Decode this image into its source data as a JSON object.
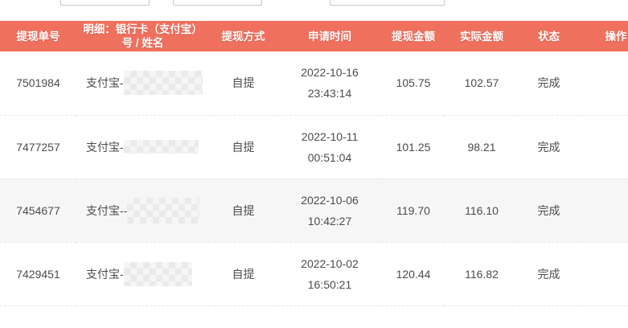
{
  "filter_bar": {
    "inputs": [
      {
        "value": "",
        "placeholder": ""
      },
      {
        "value": "",
        "placeholder": ""
      },
      {
        "value": "",
        "placeholder": ""
      }
    ]
  },
  "table": {
    "header_bg": "#f0705e",
    "columns": [
      "提现单号",
      "明细：银行卡（支付宝）号 / 姓名",
      "提现方式",
      "申请时间",
      "提现金额",
      "实际金额",
      "状态",
      "操作"
    ],
    "rows": [
      {
        "order_no": "7501984",
        "detail_prefix": "支付宝-",
        "redacted": "blurred",
        "method": "自提",
        "apply_date": "2022-10-16",
        "apply_time": "23:43:14",
        "amount": "105.75",
        "actual": "102.57",
        "status": "完成",
        "operation": ""
      },
      {
        "order_no": "7477257",
        "detail_prefix": "支付宝-",
        "redacted": "blurred",
        "method": "自提",
        "apply_date": "2022-10-11",
        "apply_time": "00:51:04",
        "amount": "101.25",
        "actual": "98.21",
        "status": "完成",
        "operation": ""
      },
      {
        "order_no": "7454677",
        "detail_prefix": "支付宝--",
        "redacted": "blurred",
        "method": "自提",
        "apply_date": "2022-10-06",
        "apply_time": "10:42:27",
        "amount": "119.70",
        "actual": "116.10",
        "status": "完成",
        "operation": ""
      },
      {
        "order_no": "7429451",
        "detail_prefix": "支付宝-",
        "redacted": "blurred",
        "method": "自提",
        "apply_date": "2022-10-02",
        "apply_time": "16:50:21",
        "amount": "120.44",
        "actual": "116.82",
        "status": "完成",
        "operation": ""
      }
    ]
  }
}
